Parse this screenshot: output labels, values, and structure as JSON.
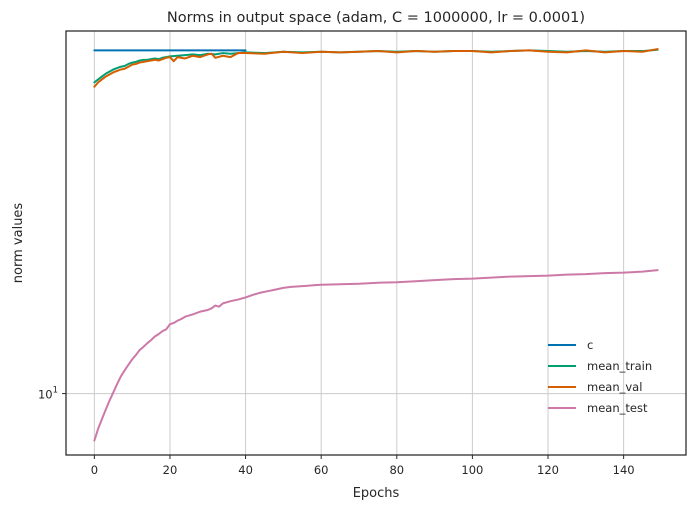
{
  "chart_data": {
    "type": "line",
    "title": "Norms in output space (adam, C = 1000000, lr = 0.0001)",
    "xlabel": "Epochs",
    "ylabel": "norm values",
    "xlim": [
      -7.5,
      156.5
    ],
    "ylim": [
      8.4,
      28.0
    ],
    "yscale": "log",
    "grid": true,
    "legend_position": "lower-right",
    "x_ticks": [
      0,
      20,
      40,
      60,
      80,
      100,
      120,
      140
    ],
    "y_ticks": [
      {
        "value": 10,
        "label": "10",
        "superscript": "1"
      }
    ],
    "series": [
      {
        "name": "c",
        "color": "#0072b2",
        "x": [
          0,
          40
        ],
        "y": [
          26.5,
          26.5
        ]
      },
      {
        "name": "mean_train",
        "color": "#009e73",
        "x": [
          0,
          1,
          2,
          3,
          4,
          5,
          6,
          7,
          8,
          9,
          10,
          11,
          12,
          13,
          14,
          15,
          16,
          17,
          18,
          19,
          20,
          22,
          24,
          26,
          28,
          30,
          32,
          34,
          36,
          38,
          40,
          45,
          50,
          55,
          60,
          65,
          70,
          75,
          80,
          85,
          90,
          95,
          100,
          105,
          110,
          115,
          120,
          125,
          130,
          135,
          140,
          145,
          149
        ],
        "y": [
          24.2,
          24.4,
          24.6,
          24.8,
          24.95,
          25.1,
          25.2,
          25.3,
          25.35,
          25.5,
          25.6,
          25.65,
          25.75,
          25.8,
          25.8,
          25.85,
          25.9,
          25.85,
          25.95,
          26.0,
          26.05,
          26.1,
          26.15,
          26.2,
          26.15,
          26.25,
          26.2,
          26.3,
          26.25,
          26.3,
          26.35,
          26.3,
          26.4,
          26.35,
          26.4,
          26.35,
          26.4,
          26.45,
          26.4,
          26.45,
          26.4,
          26.45,
          26.45,
          26.4,
          26.45,
          26.5,
          26.45,
          26.4,
          26.45,
          26.4,
          26.45,
          26.45,
          26.55
        ]
      },
      {
        "name": "mean_val",
        "color": "#d55e00",
        "x": [
          0,
          1,
          2,
          3,
          4,
          5,
          6,
          7,
          8,
          9,
          10,
          11,
          12,
          13,
          14,
          15,
          16,
          17,
          18,
          19,
          20,
          21,
          22,
          24,
          26,
          28,
          30,
          31,
          32,
          34,
          36,
          38,
          40,
          45,
          50,
          55,
          60,
          65,
          70,
          75,
          80,
          85,
          90,
          95,
          100,
          105,
          110,
          115,
          120,
          125,
          130,
          135,
          140,
          145,
          149
        ],
        "y": [
          23.9,
          24.2,
          24.4,
          24.6,
          24.75,
          24.9,
          25.0,
          25.1,
          25.15,
          25.3,
          25.45,
          25.5,
          25.6,
          25.65,
          25.7,
          25.75,
          25.8,
          25.75,
          25.85,
          25.95,
          26.0,
          25.7,
          26.0,
          25.9,
          26.1,
          26.0,
          26.2,
          26.25,
          25.95,
          26.1,
          26.0,
          26.3,
          26.3,
          26.25,
          26.4,
          26.3,
          26.4,
          26.35,
          26.4,
          26.45,
          26.35,
          26.45,
          26.4,
          26.45,
          26.45,
          26.35,
          26.45,
          26.5,
          26.4,
          26.35,
          26.5,
          26.35,
          26.45,
          26.4,
          26.6
        ]
      },
      {
        "name": "mean_test",
        "color": "#cc79a7",
        "x": [
          0,
          1,
          2,
          3,
          4,
          5,
          6,
          7,
          8,
          9,
          10,
          11,
          12,
          13,
          14,
          15,
          16,
          17,
          18,
          19,
          20,
          21,
          22,
          23,
          24,
          26,
          28,
          30,
          31,
          32,
          33,
          34,
          36,
          38,
          40,
          42,
          44,
          46,
          48,
          50,
          52,
          54,
          56,
          58,
          60,
          65,
          70,
          75,
          80,
          85,
          90,
          95,
          100,
          105,
          110,
          115,
          120,
          125,
          130,
          135,
          140,
          145,
          149
        ],
        "y": [
          8.75,
          9.05,
          9.3,
          9.55,
          9.8,
          10.03,
          10.27,
          10.5,
          10.68,
          10.85,
          11.02,
          11.16,
          11.32,
          11.42,
          11.54,
          11.64,
          11.76,
          11.84,
          11.94,
          12.0,
          12.18,
          12.22,
          12.3,
          12.36,
          12.44,
          12.52,
          12.62,
          12.68,
          12.74,
          12.84,
          12.8,
          12.92,
          13.0,
          13.06,
          13.14,
          13.24,
          13.32,
          13.38,
          13.44,
          13.5,
          13.54,
          13.56,
          13.58,
          13.6,
          13.62,
          13.64,
          13.66,
          13.7,
          13.72,
          13.76,
          13.8,
          13.84,
          13.86,
          13.9,
          13.94,
          13.96,
          13.98,
          14.02,
          14.04,
          14.08,
          14.1,
          14.14,
          14.2
        ]
      }
    ]
  }
}
